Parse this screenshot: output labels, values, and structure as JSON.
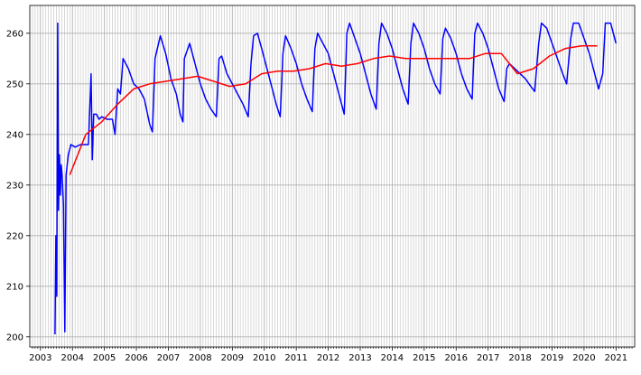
{
  "chart_data": {
    "type": "line",
    "title": "",
    "xlabel": "",
    "ylabel": "",
    "xlim": [
      "2002-09-01",
      "2021-08-01"
    ],
    "ylim": [
      198,
      265.5
    ],
    "grid": "on (major yearly + minor monthly vertical lines, horizontal at y ticks)",
    "x_tick_labels": [
      "2003",
      "2004",
      "2005",
      "2006",
      "2007",
      "2008",
      "2009",
      "2010",
      "2011",
      "2012",
      "2013",
      "2014",
      "2015",
      "2016",
      "2017",
      "2018",
      "2019",
      "2020",
      "2021"
    ],
    "y_tick_labels": [
      "200",
      "210",
      "220",
      "230",
      "240",
      "250",
      "260"
    ],
    "series": [
      {
        "color": "#0000ff",
        "points": [
          [
            "2003-06-15",
            200.5
          ],
          [
            "2003-06-25",
            220
          ],
          [
            "2003-07-05",
            208
          ],
          [
            "2003-07-15",
            262
          ],
          [
            "2003-07-25",
            225
          ],
          [
            "2003-08-05",
            236
          ],
          [
            "2003-08-15",
            228
          ],
          [
            "2003-08-25",
            234
          ],
          [
            "2003-09-05",
            232
          ],
          [
            "2003-09-20",
            226
          ],
          [
            "2003-10-05",
            201
          ],
          [
            "2003-10-20",
            232
          ],
          [
            "2003-11-15",
            236
          ],
          [
            "2003-12-15",
            238
          ],
          [
            "2004-02-01",
            237.5
          ],
          [
            "2004-04-01",
            238
          ],
          [
            "2004-06-01",
            238
          ],
          [
            "2004-07-01",
            238
          ],
          [
            "2004-08-01",
            252
          ],
          [
            "2004-08-15",
            235
          ],
          [
            "2004-09-01",
            244
          ],
          [
            "2004-10-01",
            244
          ],
          [
            "2004-11-01",
            243
          ],
          [
            "2004-12-01",
            243.5
          ],
          [
            "2005-02-01",
            243
          ],
          [
            "2005-04-01",
            243
          ],
          [
            "2005-05-01",
            240
          ],
          [
            "2005-06-01",
            249
          ],
          [
            "2005-07-01",
            248
          ],
          [
            "2005-08-01",
            255
          ],
          [
            "2005-10-01",
            253
          ],
          [
            "2005-12-01",
            250
          ],
          [
            "2006-02-01",
            249
          ],
          [
            "2006-04-01",
            247
          ],
          [
            "2006-06-01",
            242
          ],
          [
            "2006-07-01",
            240.5
          ],
          [
            "2006-08-01",
            255
          ],
          [
            "2006-10-01",
            259.5
          ],
          [
            "2006-12-01",
            256
          ],
          [
            "2007-02-01",
            251
          ],
          [
            "2007-04-01",
            248
          ],
          [
            "2007-05-15",
            244
          ],
          [
            "2007-06-15",
            242.5
          ],
          [
            "2007-07-01",
            255
          ],
          [
            "2007-09-01",
            258
          ],
          [
            "2007-11-01",
            254
          ],
          [
            "2008-01-01",
            250
          ],
          [
            "2008-03-01",
            247
          ],
          [
            "2008-05-01",
            245
          ],
          [
            "2008-07-01",
            243.5
          ],
          [
            "2008-08-01",
            255
          ],
          [
            "2008-09-01",
            255.5
          ],
          [
            "2008-11-01",
            252
          ],
          [
            "2009-01-01",
            250
          ],
          [
            "2009-03-01",
            248
          ],
          [
            "2009-05-01",
            246
          ],
          [
            "2009-07-01",
            243.5
          ],
          [
            "2009-08-01",
            254
          ],
          [
            "2009-09-01",
            259.5
          ],
          [
            "2009-10-15",
            260
          ],
          [
            "2009-12-01",
            257
          ],
          [
            "2010-02-01",
            253
          ],
          [
            "2010-04-01",
            249
          ],
          [
            "2010-05-15",
            246
          ],
          [
            "2010-07-01",
            243.5
          ],
          [
            "2010-08-01",
            256
          ],
          [
            "2010-09-01",
            259.5
          ],
          [
            "2010-11-01",
            257
          ],
          [
            "2011-01-01",
            254
          ],
          [
            "2011-03-01",
            250
          ],
          [
            "2011-05-01",
            247
          ],
          [
            "2011-07-01",
            244.5
          ],
          [
            "2011-08-01",
            257
          ],
          [
            "2011-09-01",
            260
          ],
          [
            "2011-11-01",
            258
          ],
          [
            "2012-01-01",
            256
          ],
          [
            "2012-03-01",
            252
          ],
          [
            "2012-05-01",
            248
          ],
          [
            "2012-07-01",
            244
          ],
          [
            "2012-08-01",
            260
          ],
          [
            "2012-09-01",
            262
          ],
          [
            "2012-11-01",
            259
          ],
          [
            "2013-01-01",
            256
          ],
          [
            "2013-03-01",
            252
          ],
          [
            "2013-05-01",
            248
          ],
          [
            "2013-07-01",
            245
          ],
          [
            "2013-08-01",
            258
          ],
          [
            "2013-09-01",
            262
          ],
          [
            "2013-11-01",
            260
          ],
          [
            "2014-01-01",
            257
          ],
          [
            "2014-03-01",
            253
          ],
          [
            "2014-05-01",
            249
          ],
          [
            "2014-07-01",
            246
          ],
          [
            "2014-08-01",
            258
          ],
          [
            "2014-09-01",
            262
          ],
          [
            "2014-11-01",
            260
          ],
          [
            "2015-01-01",
            257
          ],
          [
            "2015-03-01",
            253
          ],
          [
            "2015-05-01",
            250
          ],
          [
            "2015-07-01",
            248
          ],
          [
            "2015-08-01",
            259
          ],
          [
            "2015-09-01",
            261
          ],
          [
            "2015-11-01",
            259
          ],
          [
            "2016-01-01",
            256
          ],
          [
            "2016-03-01",
            252
          ],
          [
            "2016-05-01",
            249
          ],
          [
            "2016-07-01",
            247
          ],
          [
            "2016-08-01",
            260
          ],
          [
            "2016-09-01",
            262
          ],
          [
            "2016-11-01",
            260
          ],
          [
            "2017-01-01",
            257
          ],
          [
            "2017-03-01",
            253
          ],
          [
            "2017-05-01",
            249
          ],
          [
            "2017-07-01",
            246.5
          ],
          [
            "2017-08-01",
            253
          ],
          [
            "2017-09-01",
            254
          ],
          [
            "2017-11-01",
            253
          ],
          [
            "2018-01-01",
            252
          ],
          [
            "2018-03-01",
            251
          ],
          [
            "2018-05-01",
            249.5
          ],
          [
            "2018-06-15",
            248.5
          ],
          [
            "2018-08-01",
            258
          ],
          [
            "2018-09-01",
            262
          ],
          [
            "2018-11-01",
            261
          ],
          [
            "2019-01-01",
            258
          ],
          [
            "2019-03-01",
            255
          ],
          [
            "2019-05-01",
            252
          ],
          [
            "2019-06-15",
            250
          ],
          [
            "2019-08-01",
            259
          ],
          [
            "2019-09-01",
            262
          ],
          [
            "2019-11-01",
            262
          ],
          [
            "2020-01-01",
            259
          ],
          [
            "2020-03-01",
            256
          ],
          [
            "2020-05-01",
            252
          ],
          [
            "2020-06-15",
            249
          ],
          [
            "2020-08-01",
            252
          ],
          [
            "2020-09-01",
            262
          ],
          [
            "2020-11-01",
            262
          ],
          [
            "2021-01-01",
            258
          ]
        ]
      },
      {
        "color": "#ff0000",
        "points": [
          [
            "2003-12-01",
            232
          ],
          [
            "2004-06-01",
            240
          ],
          [
            "2004-12-01",
            242.5
          ],
          [
            "2005-06-01",
            246
          ],
          [
            "2005-12-01",
            249
          ],
          [
            "2006-06-01",
            250
          ],
          [
            "2006-12-01",
            250.5
          ],
          [
            "2007-06-01",
            251
          ],
          [
            "2007-12-01",
            251.5
          ],
          [
            "2008-06-01",
            250.5
          ],
          [
            "2008-12-01",
            249.5
          ],
          [
            "2009-06-01",
            250
          ],
          [
            "2009-12-01",
            252
          ],
          [
            "2010-06-01",
            252.5
          ],
          [
            "2010-12-01",
            252.5
          ],
          [
            "2011-06-01",
            253
          ],
          [
            "2011-12-01",
            254
          ],
          [
            "2012-06-01",
            253.5
          ],
          [
            "2012-12-01",
            254
          ],
          [
            "2013-06-01",
            255
          ],
          [
            "2013-12-01",
            255.5
          ],
          [
            "2014-06-01",
            255
          ],
          [
            "2014-12-01",
            255
          ],
          [
            "2015-06-01",
            255
          ],
          [
            "2015-12-01",
            255
          ],
          [
            "2016-06-01",
            255
          ],
          [
            "2016-12-01",
            256
          ],
          [
            "2017-06-01",
            256
          ],
          [
            "2017-12-01",
            252
          ],
          [
            "2018-06-01",
            253
          ],
          [
            "2018-12-01",
            255.5
          ],
          [
            "2019-06-01",
            257
          ],
          [
            "2019-12-01",
            257.5
          ],
          [
            "2020-06-01",
            257.5
          ]
        ]
      }
    ]
  }
}
